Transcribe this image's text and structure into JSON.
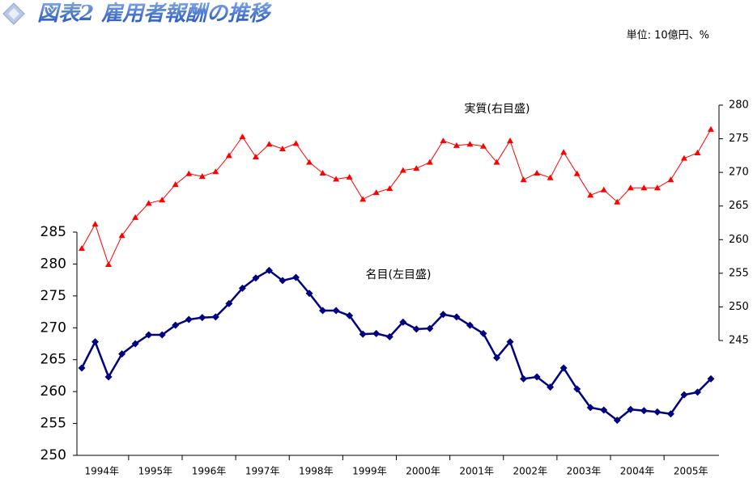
{
  "chart_data": {
    "type": "line",
    "title": "図表2 雇用者報酬の推移",
    "subtitle": "単位: 10億円、%",
    "categories": [
      "1994年",
      null,
      null,
      null,
      "1995年",
      null,
      null,
      null,
      "1996年",
      null,
      null,
      null,
      "1997年",
      null,
      null,
      null,
      "1998年",
      null,
      null,
      null,
      "1999年",
      null,
      null,
      null,
      "2000年",
      null,
      null,
      null,
      "2001年",
      null,
      null,
      null,
      "2002年",
      null,
      null,
      null,
      "2003年",
      null,
      null,
      null,
      "2004年",
      null,
      null,
      null,
      "2005年",
      null,
      null,
      null
    ],
    "series": [
      {
        "name": "名目(左目盛)",
        "color": "#000080",
        "marker": "diamond",
        "axis": "y",
        "values": [
          263.7,
          267.8,
          262.3,
          265.9,
          267.5,
          268.9,
          268.9,
          270.4,
          271.3,
          271.6,
          271.7,
          273.8,
          276.2,
          277.8,
          279.0,
          277.4,
          277.9,
          275.4,
          272.7,
          272.7,
          271.9,
          269.0,
          269.1,
          268.6,
          270.9,
          269.8,
          269.9,
          272.1,
          271.7,
          270.4,
          269.1,
          265.3,
          267.8,
          262.0,
          262.3,
          260.7,
          263.7,
          260.4,
          257.5,
          257.1,
          255.5,
          257.2,
          257.0,
          256.8,
          256.5,
          259.5,
          259.9,
          262.0
        ]
      },
      {
        "name": "実質(右目盛)",
        "color": "#ff0000",
        "marker": "triangle",
        "axis": "y2",
        "values": [
          258.7,
          262.3,
          256.3,
          260.6,
          263.3,
          265.4,
          265.9,
          268.2,
          269.8,
          269.4,
          270.1,
          272.5,
          275.3,
          272.3,
          274.2,
          273.5,
          274.3,
          271.5,
          269.9,
          269.0,
          269.3,
          266.0,
          267.0,
          267.6,
          270.3,
          270.6,
          271.5,
          274.7,
          274.0,
          274.2,
          273.9,
          271.5,
          274.7,
          268.9,
          269.9,
          269.2,
          273.0,
          269.8,
          266.6,
          267.4,
          265.6,
          267.7,
          267.7,
          267.7,
          268.9,
          272.1,
          272.9,
          276.4
        ]
      }
    ],
    "ylim": [
      250,
      285
    ],
    "yticks": [
      250,
      255,
      260,
      265,
      270,
      275,
      280,
      285
    ],
    "y2lim": [
      245,
      280
    ],
    "y2ticks": [
      245,
      250,
      255,
      260,
      265,
      270,
      275,
      280
    ]
  }
}
